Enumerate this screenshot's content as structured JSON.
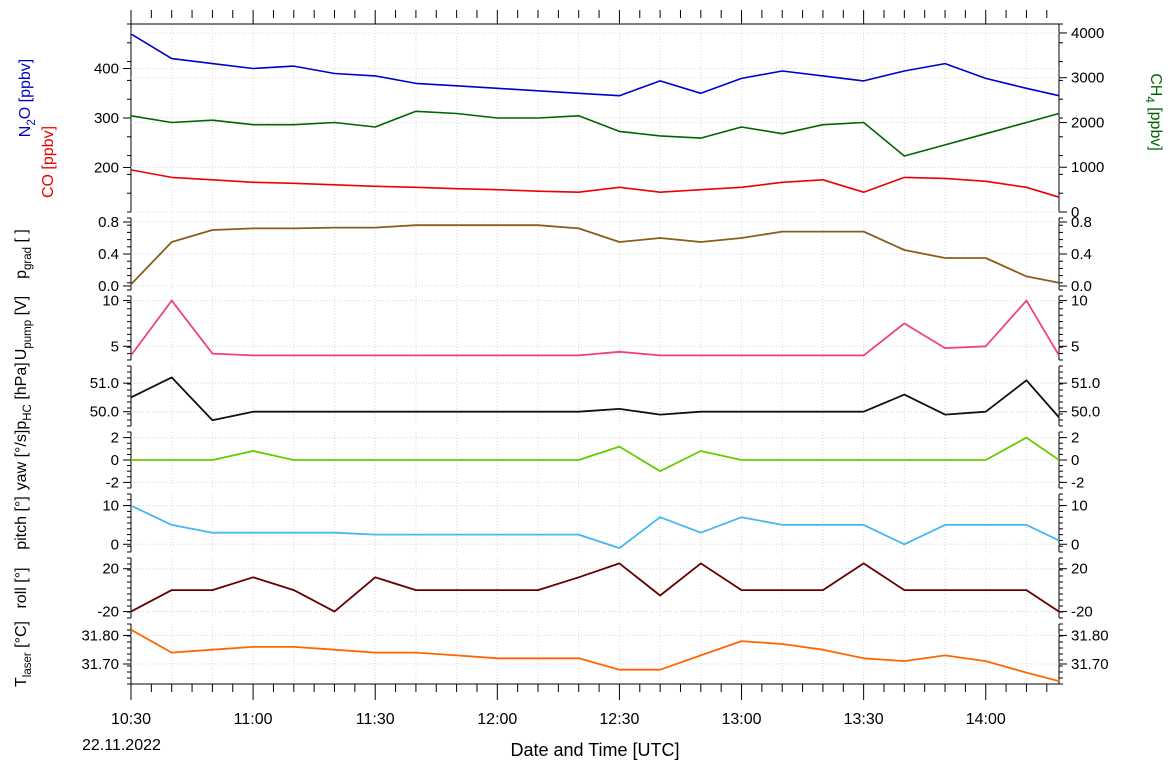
{
  "colors": {
    "n2o": "#0000cc",
    "ch4": "#006400",
    "co": "#ee0000",
    "pgrad": "#8b5e17",
    "upump": "#f0407f",
    "phc": "#111111",
    "yaw": "#66cc00",
    "pitch": "#44b8ee",
    "roll": "#660000",
    "tlaser": "#ff6600"
  },
  "chart_data": {
    "type": "line",
    "xlabel": "Date and Time [UTC]",
    "date_label": "22.11.2022",
    "x_ticks": [
      "10:30",
      "11:00",
      "11:30",
      "12:00",
      "12:30",
      "13:00",
      "13:30",
      "14:00"
    ],
    "x": [
      "10:30",
      "10:40",
      "10:50",
      "11:00",
      "11:10",
      "11:20",
      "11:30",
      "11:40",
      "11:50",
      "12:00",
      "12:10",
      "12:20",
      "12:30",
      "12:40",
      "12:50",
      "13:00",
      "13:10",
      "13:20",
      "13:30",
      "13:40",
      "13:50",
      "14:00",
      "14:10",
      "14:18"
    ],
    "panels": [
      {
        "id": "gas",
        "ylabel_left_n2o": [
          "N",
          "2",
          "O [ppbv]"
        ],
        "ylabel_left_co": "CO [ppbv]",
        "ylabel_right": [
          "CH",
          "4",
          " [ppbv]"
        ],
        "left_ticks": [
          "200",
          "300",
          "400"
        ],
        "right_ticks": [
          "0",
          "1000",
          "2000",
          "3000",
          "4000"
        ],
        "ylim_left": [
          110,
          490
        ],
        "ylim_right": [
          0,
          4200
        ],
        "series": [
          {
            "name": "N2O",
            "axis": "left",
            "values": [
              470,
              420,
              410,
              400,
              405,
              390,
              385,
              370,
              365,
              360,
              355,
              350,
              345,
              375,
              350,
              380,
              395,
              385,
              375,
              395,
              410,
              380,
              360,
              345
            ]
          },
          {
            "name": "CH4",
            "axis": "right",
            "values": [
              2150,
              2000,
              2050,
              1950,
              1950,
              2000,
              1900,
              2250,
              2200,
              2100,
              2100,
              2150,
              1800,
              1700,
              1650,
              1900,
              1750,
              1950,
              2000,
              1250,
              1500,
              1750,
              2000,
              2200
            ]
          },
          {
            "name": "CO",
            "axis": "left",
            "values": [
              195,
              180,
              175,
              170,
              168,
              165,
              162,
              160,
              157,
              155,
              152,
              150,
              160,
              150,
              155,
              160,
              170,
              175,
              150,
              180,
              178,
              172,
              160,
              140
            ]
          }
        ]
      },
      {
        "id": "pgrad",
        "ylabel": [
          "p",
          "grad",
          " [ ]"
        ],
        "left_ticks": [
          "0.0",
          "0.4",
          "0.8"
        ],
        "right_ticks": [
          "0.0",
          "0.4",
          "0.8"
        ],
        "ylim": [
          -0.05,
          0.85
        ],
        "series": [
          {
            "name": "pgrad",
            "values": [
              0.02,
              0.55,
              0.7,
              0.72,
              0.72,
              0.73,
              0.73,
              0.76,
              0.76,
              0.76,
              0.76,
              0.72,
              0.55,
              0.6,
              0.55,
              0.6,
              0.68,
              0.68,
              0.68,
              0.45,
              0.35,
              0.35,
              0.12,
              0.04
            ]
          }
        ]
      },
      {
        "id": "upump",
        "ylabel": [
          "U",
          "pump",
          " [V]"
        ],
        "left_ticks": [
          "5",
          "10"
        ],
        "right_ticks": [
          "5",
          "10"
        ],
        "ylim": [
          3.5,
          10.5
        ],
        "series": [
          {
            "name": "Upump",
            "values": [
              4,
              10,
              4.2,
              4,
              4,
              4,
              4,
              4,
              4,
              4,
              4,
              4,
              4.4,
              4,
              4,
              4,
              4,
              4,
              4,
              7.5,
              4.8,
              5.0,
              10,
              4
            ]
          }
        ]
      },
      {
        "id": "phc",
        "ylabel": [
          "p",
          "HC",
          " [hPa]"
        ],
        "left_ticks": [
          "50.0",
          "51.0"
        ],
        "right_ticks": [
          "50.0",
          "51.0"
        ],
        "ylim": [
          49.5,
          51.6
        ],
        "series": [
          {
            "name": "pHC",
            "values": [
              50.5,
              51.2,
              49.7,
              50.0,
              50.0,
              50.0,
              50.0,
              50.0,
              50.0,
              50.0,
              50.0,
              50.0,
              50.1,
              49.9,
              50.0,
              50.0,
              50.0,
              50.0,
              50.0,
              50.6,
              49.9,
              50.0,
              51.1,
              49.8
            ]
          }
        ]
      },
      {
        "id": "yaw",
        "ylabel": "yaw [°/s]",
        "left_ticks": [
          "-2",
          "0",
          "2"
        ],
        "right_ticks": [
          "-2",
          "0",
          "2"
        ],
        "ylim": [
          -2.5,
          2.5
        ],
        "series": [
          {
            "name": "yaw",
            "values": [
              0,
              0,
              0,
              0.8,
              0,
              0,
              0,
              0,
              0,
              0,
              0,
              0,
              1.2,
              -1,
              0.8,
              0,
              0,
              0,
              0,
              0,
              0,
              0,
              2,
              0
            ]
          }
        ]
      },
      {
        "id": "pitch",
        "ylabel": "pitch [°]",
        "left_ticks": [
          "0",
          "10"
        ],
        "right_ticks": [
          "0",
          "10"
        ],
        "ylim": [
          -2,
          13
        ],
        "series": [
          {
            "name": "pitch",
            "values": [
              10,
              5,
              3,
              3,
              3,
              3,
              2.5,
              2.5,
              2.5,
              2.5,
              2.5,
              2.5,
              -1,
              7,
              3,
              7,
              5,
              5,
              5,
              0,
              5,
              5,
              5,
              1
            ]
          }
        ]
      },
      {
        "id": "roll",
        "ylabel": "roll [°]",
        "left_ticks": [
          "-20",
          "20"
        ],
        "right_ticks": [
          "-20",
          "20"
        ],
        "ylim": [
          -26,
          30
        ],
        "series": [
          {
            "name": "roll",
            "values": [
              -20,
              0,
              0,
              12,
              0,
              -20,
              12,
              0,
              0,
              0,
              0,
              12,
              25,
              -5,
              25,
              0,
              0,
              0,
              25,
              0,
              0,
              0,
              0,
              -20
            ]
          }
        ]
      },
      {
        "id": "tlaser",
        "ylabel": [
          "T",
          "laser",
          " [°C]"
        ],
        "left_ticks": [
          "31.70",
          "31.80"
        ],
        "right_ticks": [
          "31.70",
          "31.80"
        ],
        "ylim": [
          31.63,
          31.84
        ],
        "series": [
          {
            "name": "Tlaser",
            "values": [
              31.82,
              31.74,
              31.75,
              31.76,
              31.76,
              31.75,
              31.74,
              31.74,
              31.73,
              31.72,
              31.72,
              31.72,
              31.68,
              31.68,
              31.73,
              31.78,
              31.77,
              31.75,
              31.72,
              31.71,
              31.73,
              31.71,
              31.67,
              31.64
            ]
          }
        ]
      }
    ]
  }
}
